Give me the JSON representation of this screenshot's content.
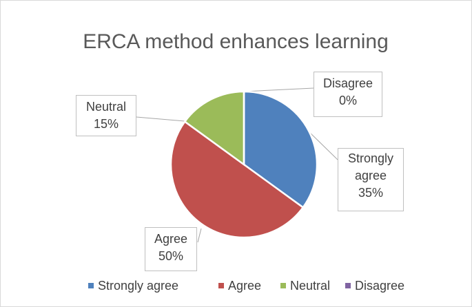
{
  "chart_data": {
    "type": "pie",
    "title": "ERCA method enhances learning",
    "categories": [
      "Strongly agree",
      "Agree",
      "Neutral",
      "Disagree"
    ],
    "values": [
      35,
      50,
      15,
      0
    ],
    "value_labels": [
      "35%",
      "50%",
      "15%",
      "0%"
    ],
    "colors": [
      "#4f81bd",
      "#c0504d",
      "#9bbb59",
      "#8064a2"
    ],
    "legend": "bottom"
  }
}
